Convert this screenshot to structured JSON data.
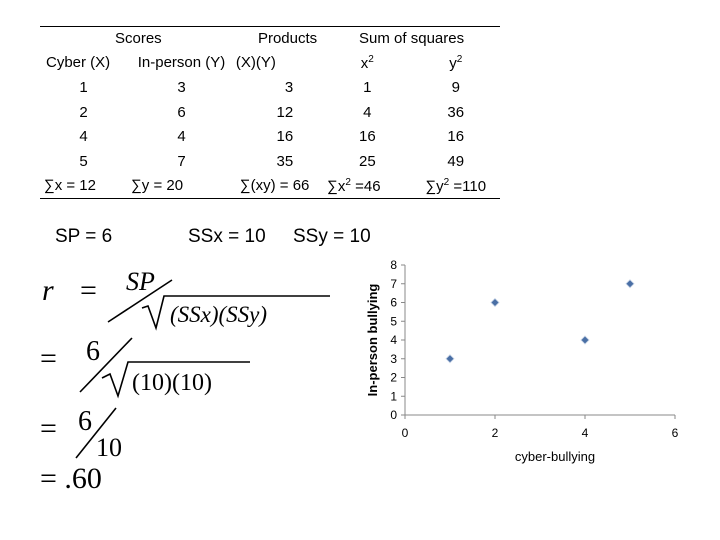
{
  "table": {
    "group_headers": [
      "Scores",
      "Products",
      "Sum of squares"
    ],
    "col_headers": [
      "Cyber (X)",
      "In-person (Y)",
      "(X)(Y)",
      "x",
      "y"
    ],
    "sup": "2",
    "rows": [
      [
        "1",
        "3",
        "3",
        "1",
        "9"
      ],
      [
        "2",
        "6",
        "12",
        "4",
        "36"
      ],
      [
        "4",
        "4",
        "16",
        "16",
        "16"
      ],
      [
        "5",
        "7",
        "35",
        "25",
        "49"
      ]
    ],
    "totals": [
      "∑x = 12",
      "∑y = 20",
      "∑(xy) = 66",
      "∑x",
      " =46",
      "∑y",
      " =110"
    ]
  },
  "summary": {
    "sp": "SP = 6",
    "ssx": "SSx = 10",
    "ssy": "SSy = 10"
  },
  "formula": {
    "r": "r",
    "eq": "=",
    "sp": "SP",
    "ssx_ssy": "(SSx)(SSy)",
    "six": "6",
    "ten_ten": "(10)(10)",
    "ten": "10",
    "result": "= .60"
  },
  "chart_data": {
    "type": "scatter",
    "x": [
      1,
      2,
      4,
      5
    ],
    "y": [
      3,
      6,
      4,
      7
    ],
    "xlabel": "cyber-bullying",
    "ylabel": "In-person bullying",
    "xlim": [
      0,
      6
    ],
    "ylim": [
      0,
      8
    ],
    "xticks": [
      0,
      2,
      4,
      6
    ],
    "yticks": [
      0,
      1,
      2,
      3,
      4,
      5,
      6,
      7,
      8
    ],
    "marker_color": "#4a6fa5"
  }
}
